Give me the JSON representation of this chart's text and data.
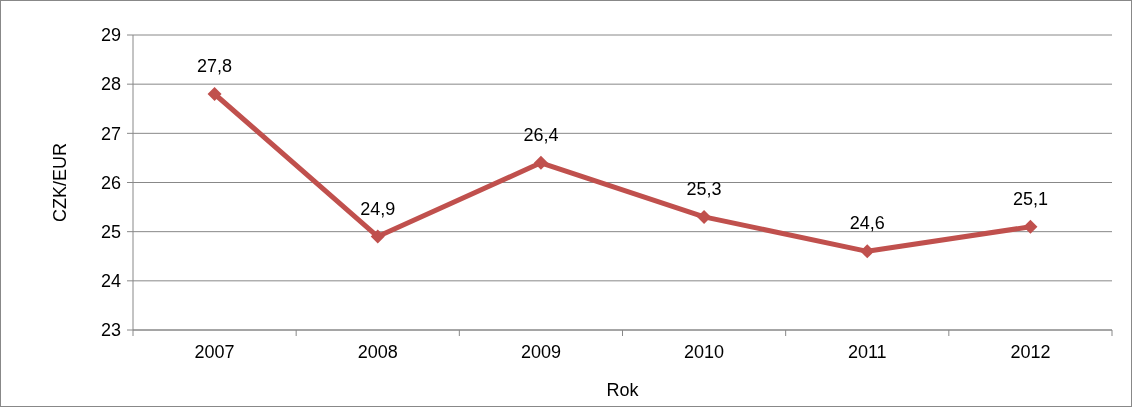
{
  "chart_data": {
    "type": "line",
    "xlabel": "Rok",
    "ylabel": "CZK/EUR",
    "categories": [
      "2007",
      "2008",
      "2009",
      "2010",
      "2011",
      "2012"
    ],
    "series": [
      {
        "color": "#c0504d",
        "values": [
          27.8,
          24.9,
          26.4,
          25.3,
          24.6,
          25.1
        ],
        "value_labels": [
          "27,8",
          "24,9",
          "26,4",
          "25,3",
          "24,6",
          "25,1"
        ]
      }
    ],
    "ylim": [
      23,
      29
    ],
    "yticks": [
      23,
      24,
      25,
      26,
      27,
      28,
      29
    ],
    "grid": "y",
    "marker": "diamond",
    "line_style": "solid"
  }
}
